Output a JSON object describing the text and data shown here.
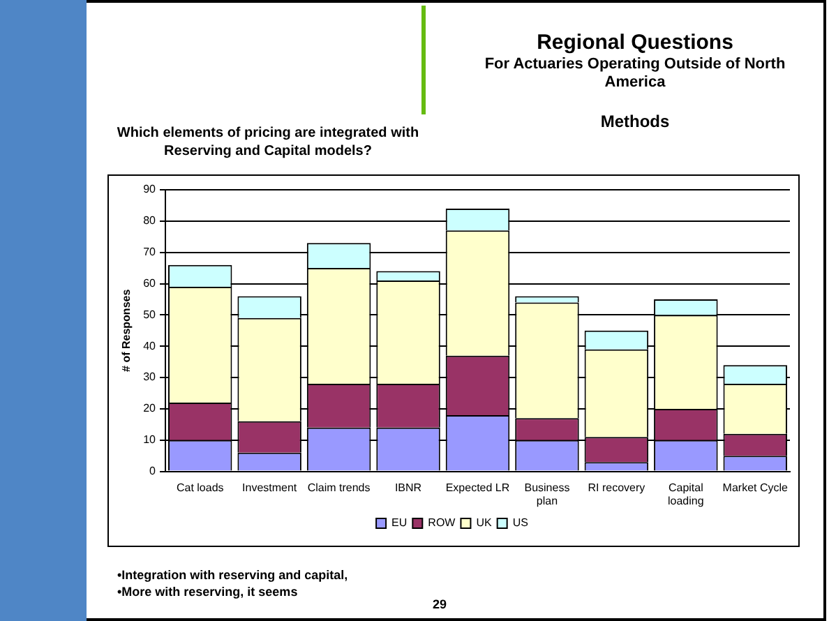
{
  "chart_data": {
    "type": "bar",
    "title": "Regional Questions",
    "subtitle": "For Actuaries Operating Outside of North America",
    "ylabel": "# of Responses",
    "annotations": [
      "Methods",
      "Which elements of pricing are integrated with Reserving and Capital models?",
      "•Integration with reserving and capital,",
      "•More with reserving, it seems",
      "29"
    ],
    "categories": [
      "Cat loads",
      "Investment",
      "Claim trends",
      "IBNR",
      "Expected LR",
      "Business plan",
      "RI recovery",
      "Capital loading",
      "Market Cycle"
    ],
    "series": [
      {
        "name": "EU",
        "color": "#9999ff",
        "values": [
          10,
          6,
          14,
          14,
          18,
          10,
          3,
          10,
          5
        ]
      },
      {
        "name": "ROW",
        "color": "#993366",
        "values": [
          12,
          10,
          14,
          14,
          19,
          7,
          8,
          10,
          7
        ]
      },
      {
        "name": "UK",
        "color": "#ffffcc",
        "values": [
          37,
          33,
          37,
          33,
          40,
          37,
          28,
          30,
          16
        ]
      },
      {
        "name": "US",
        "color": "#ccffff",
        "values": [
          7,
          7,
          8,
          3,
          7,
          2,
          6,
          5,
          6
        ]
      }
    ],
    "stacked": true,
    "ylim": [
      0,
      90
    ],
    "yticks": [
      0,
      10,
      20,
      30,
      40,
      50,
      60,
      70,
      80,
      90
    ],
    "grid": "y",
    "legend": "bottom"
  }
}
